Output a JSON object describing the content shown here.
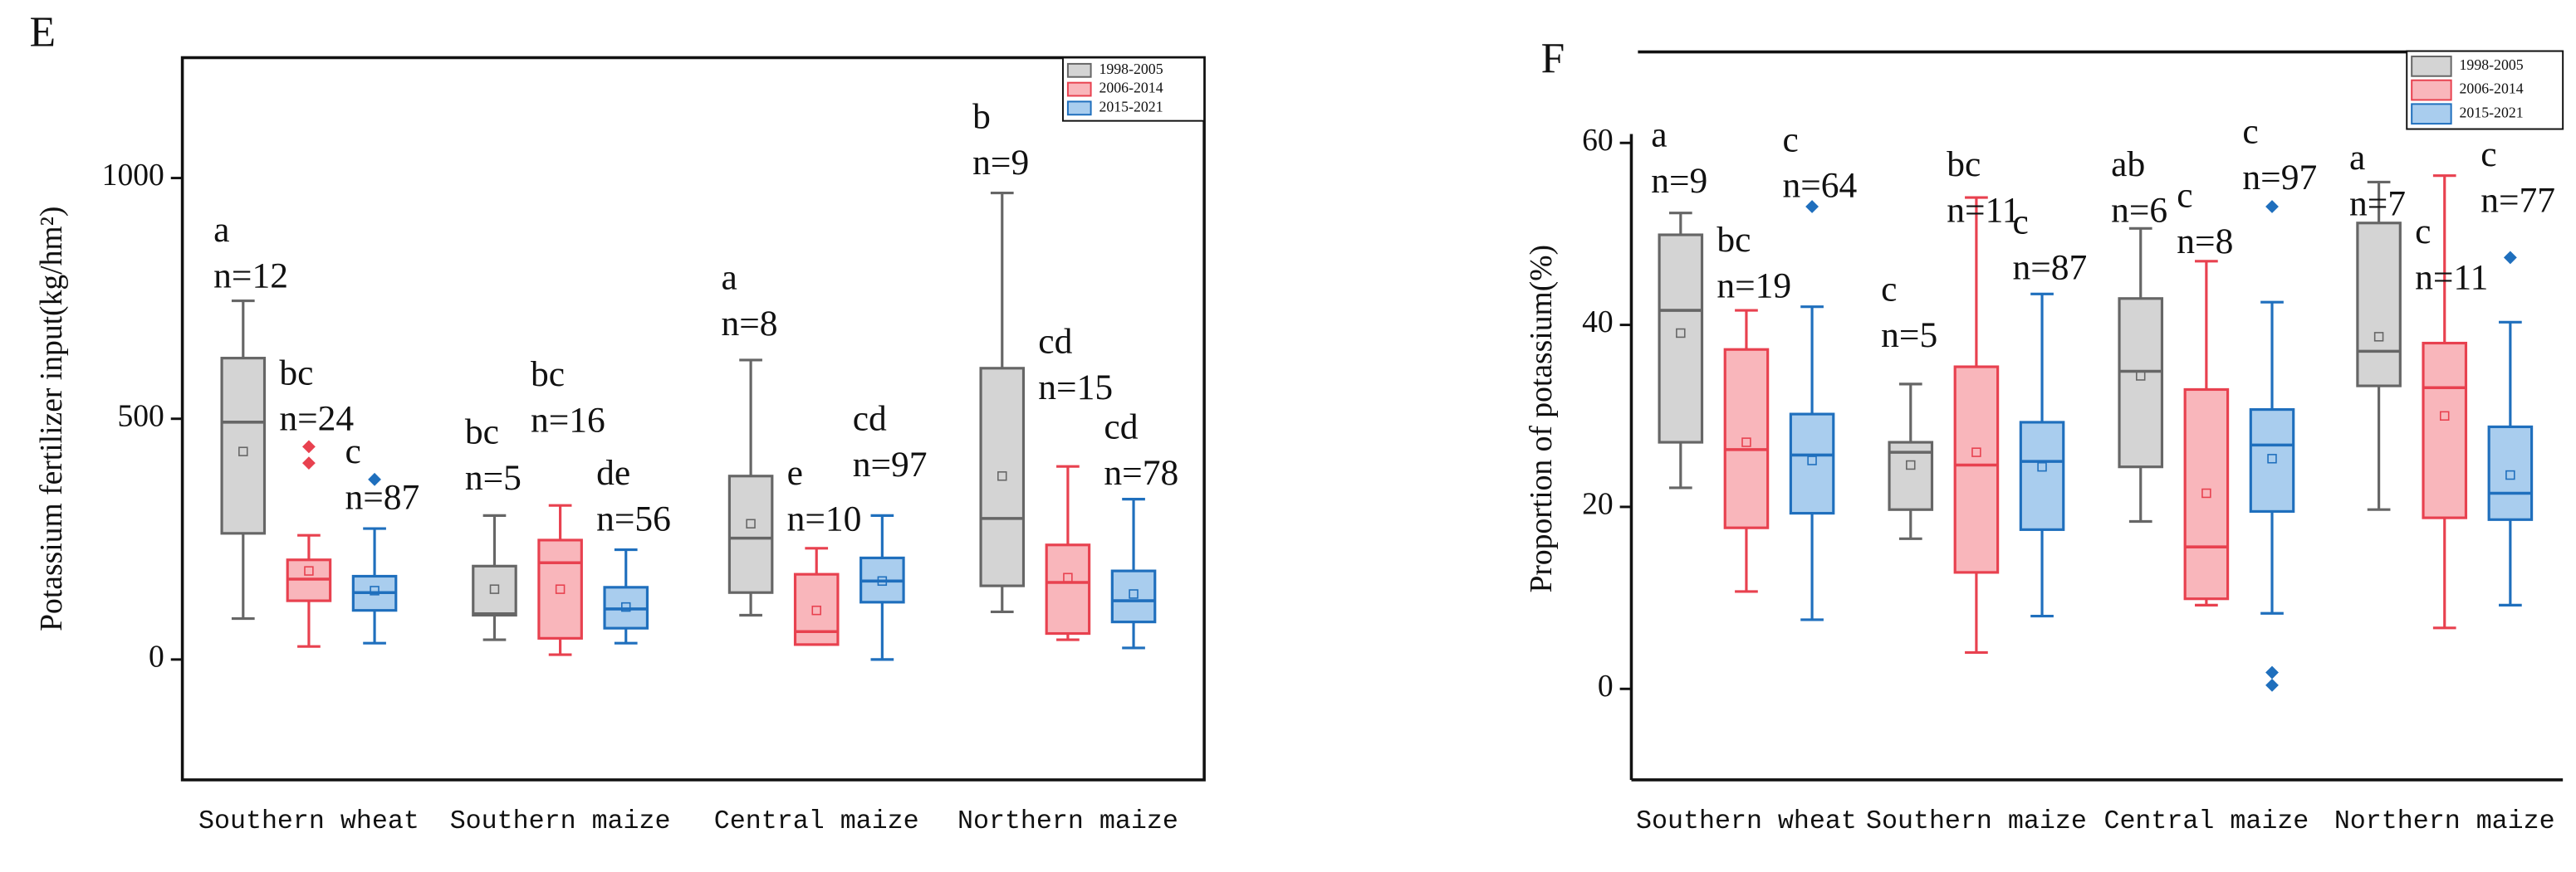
{
  "chart_data": [
    {
      "type": "box",
      "panel_label": "E",
      "y_label": "Potassium fertilizer input(kg/hm²)",
      "categories": [
        "Southern wheat",
        "Southern maize",
        "Central maize",
        "Northern maize"
      ],
      "ylim": [
        -250,
        1250
      ],
      "yticks": [
        0,
        500,
        1000
      ],
      "legend": "upper right",
      "series": [
        {
          "name": "1998-2005",
          "color": "#666666",
          "fill": "#d4d4d4",
          "min": [
            85,
            41,
            92,
            99
          ],
          "q1": [
            262,
            92,
            139,
            153
          ],
          "median": [
            493,
            95,
            252,
            293
          ],
          "q3": [
            626,
            194,
            381,
            605
          ],
          "max": [
            745,
            299,
            622,
            969
          ],
          "mean": [
            432,
            146,
            282,
            381
          ],
          "outliers": [
            [],
            [],
            [],
            []
          ],
          "letters": [
            "a",
            "bc",
            "a",
            "b"
          ],
          "n_labels": [
            "n=12",
            "n=5",
            "n=8",
            "n=9"
          ]
        },
        {
          "name": "2006-2014",
          "color": "#e8414f",
          "fill": "#f9b6bb",
          "min": [
            27,
            10,
            31,
            41
          ],
          "q1": [
            122,
            44,
            31,
            54
          ],
          "median": [
            167,
            201,
            58,
            160
          ],
          "q3": [
            207,
            248,
            177,
            238
          ],
          "max": [
            258,
            320,
            231,
            401
          ],
          "mean": [
            184,
            146,
            102,
            170
          ],
          "outliers": [
            [
              442,
              408
            ],
            [],
            [],
            []
          ],
          "letters": [
            "bc",
            "bc",
            "e",
            "cd"
          ],
          "n_labels": [
            "n=24",
            "n=16",
            "n=10",
            "n=15"
          ]
        },
        {
          "name": "2015-2021",
          "color": "#1f6fbd",
          "fill": "#a9cdee",
          "min": [
            34,
            34,
            0,
            24
          ],
          "q1": [
            102,
            65,
            119,
            78
          ],
          "median": [
            139,
            105,
            163,
            122
          ],
          "q3": [
            173,
            150,
            211,
            184
          ],
          "max": [
            272,
            228,
            299,
            333
          ],
          "mean": [
            143,
            109,
            163,
            136
          ],
          "outliers": [
            [
              374
            ],
            [],
            [],
            []
          ],
          "letters": [
            "c",
            "de",
            "cd",
            "cd"
          ],
          "n_labels": [
            "n=87",
            "n=56",
            "n=97",
            "n=78"
          ]
        }
      ]
    },
    {
      "type": "box",
      "panel_label": "F",
      "y_label": "Proportion of potassium(%)",
      "categories": [
        "Southern wheat",
        "Southern maize",
        "Central maize",
        "Northern maize"
      ],
      "ylim": [
        -10,
        70
      ],
      "yticks": [
        0,
        20,
        40,
        60
      ],
      "legend": "upper right",
      "series": [
        {
          "name": "1998-2005",
          "color": "#666666",
          "fill": "#d4d4d4",
          "min": [
            22.1,
            16.5,
            18.4,
            19.7
          ],
          "q1": [
            27.1,
            19.7,
            24.4,
            33.3
          ],
          "median": [
            41.6,
            26,
            34.9,
            37.1
          ],
          "q3": [
            49.9,
            27.1,
            42.9,
            51.2
          ],
          "max": [
            52.3,
            33.5,
            50.6,
            55.7
          ],
          "mean": [
            39.1,
            24.6,
            34.4,
            38.7
          ],
          "outliers": [
            [],
            [],
            [],
            []
          ],
          "letters": [
            "a",
            "c",
            "ab",
            "a"
          ],
          "n_labels": [
            "n=9",
            "n=5",
            "n=6",
            "n=7"
          ]
        },
        {
          "name": "2006-2014",
          "color": "#e8414f",
          "fill": "#f9b6bb",
          "min": [
            10.7,
            4,
            9.2,
            6.7
          ],
          "q1": [
            17.7,
            12.8,
            9.9,
            18.8
          ],
          "median": [
            26.3,
            24.6,
            15.6,
            33.1
          ],
          "q3": [
            37.3,
            35.4,
            32.9,
            38
          ],
          "max": [
            41.6,
            54,
            47,
            56.4
          ],
          "mean": [
            27.1,
            26,
            21.5,
            30
          ],
          "outliers": [
            [],
            [],
            [],
            []
          ],
          "letters": [
            "bc",
            "bc",
            "c",
            "c"
          ],
          "n_labels": [
            "n=19",
            "n=11",
            "n=8",
            "n=11"
          ]
        },
        {
          "name": "2015-2021",
          "color": "#1f6fbd",
          "fill": "#a9cdee",
          "min": [
            7.6,
            8,
            8.3,
            9.2
          ],
          "q1": [
            19.3,
            17.5,
            19.5,
            18.6
          ],
          "median": [
            25.7,
            25,
            26.8,
            21.5
          ],
          "q3": [
            30.2,
            29.3,
            30.7,
            28.8
          ],
          "max": [
            42,
            43.4,
            42.5,
            40.3
          ],
          "mean": [
            25.1,
            24.4,
            25.3,
            23.5
          ],
          "outliers": [
            [
              53
            ],
            [],
            [
              53,
              1.8,
              0.4
            ],
            [
              47.4
            ]
          ],
          "letters": [
            "c",
            "c",
            "c",
            "c"
          ],
          "n_labels": [
            "n=64",
            "n=87",
            "n=97",
            "n=77"
          ]
        }
      ]
    }
  ]
}
